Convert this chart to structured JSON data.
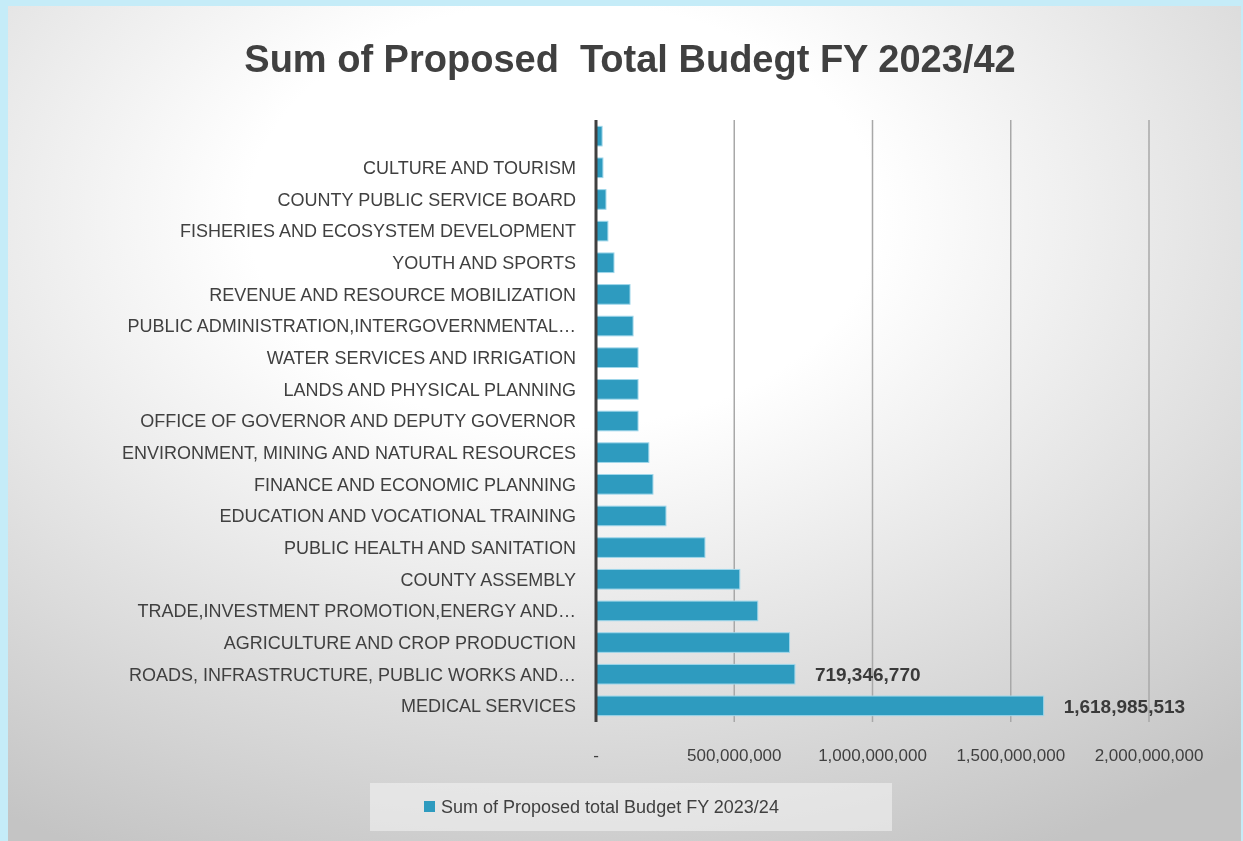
{
  "chart_data": {
    "type": "bar",
    "orientation": "horizontal",
    "title": "Sum of Proposed  Total Budegt FY 2023/42",
    "categories": [
      null,
      "CULTURE AND TOURISM",
      "COUNTY PUBLIC SERVICE BOARD",
      "FISHERIES AND ECOSYSTEM DEVELOPMENT",
      "YOUTH AND SPORTS",
      "REVENUE AND RESOURCE MOBILIZATION",
      "PUBLIC ADMINISTRATION,INTERGOVERNMENTAL…",
      "WATER SERVICES AND IRRIGATION",
      "LANDS AND PHYSICAL PLANNING",
      "OFFICE OF GOVERNOR AND DEPUTY GOVERNOR",
      "ENVIRONMENT, MINING AND NATURAL RESOURCES",
      "FINANCE AND ECONOMIC PLANNING",
      "EDUCATION AND VOCATIONAL TRAINING",
      "PUBLIC HEALTH AND SANITATION",
      "COUNTY ASSEMBLY",
      "TRADE,INVESTMENT PROMOTION,ENERGY  AND…",
      "AGRICULTURE AND CROP PRODUCTION",
      "ROADS, INFRASTRUCTURE, PUBLIC WORKS AND…",
      "MEDICAL SERVICES"
    ],
    "series": [
      {
        "name": "Sum of Proposed total Budget FY 2023/24",
        "color": "#2e9bbf",
        "values": [
          22000000,
          25000000,
          36000000,
          43000000,
          65000000,
          123000000,
          134000000,
          152000000,
          152000000,
          152000000,
          191000000,
          206000000,
          253000000,
          394000000,
          520000000,
          585000000,
          700000000,
          719346770,
          1618985513
        ],
        "value_labels": [
          null,
          null,
          null,
          null,
          null,
          null,
          null,
          null,
          null,
          null,
          null,
          null,
          null,
          null,
          null,
          null,
          null,
          "719,346,770",
          "1,618,985,513"
        ]
      }
    ],
    "xlim": [
      0,
      2000000000
    ],
    "xticks": [
      {
        "value": 0,
        "label": "-"
      },
      {
        "value": 500000000,
        "label": "500,000,000"
      },
      {
        "value": 1000000000,
        "label": "1,000,000,000"
      },
      {
        "value": 1500000000,
        "label": "1,500,000,000"
      },
      {
        "value": 2000000000,
        "label": "2,000,000,000"
      }
    ],
    "grid": "x",
    "legend": "bottom"
  }
}
